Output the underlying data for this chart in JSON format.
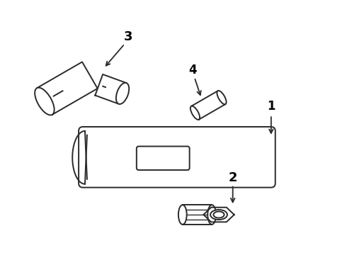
{
  "background_color": "#ffffff",
  "line_color": "#2a2a2a",
  "line_width": 1.4,
  "label_fontsize": 12,
  "label_fontweight": "bold",
  "figsize": [
    4.9,
    3.6
  ],
  "dpi": 100
}
